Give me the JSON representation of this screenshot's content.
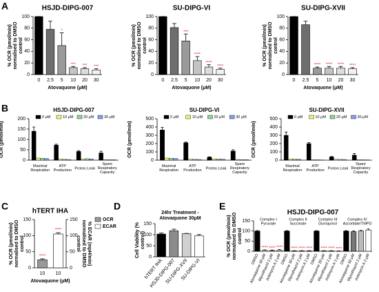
{
  "chart_data": [
    {
      "type": "bar",
      "panel_label": "A",
      "title": "HSJD-DIPG-007",
      "ylabel": "% OCR (pmol/min) normalised to DMSO control",
      "xlabel": "Atovaquone (μM)",
      "categories": [
        "0",
        "2.5",
        "5",
        "10",
        "20",
        "30"
      ],
      "values": [
        100,
        78,
        50,
        12,
        10,
        8
      ],
      "errors": [
        0,
        14,
        22,
        2,
        2,
        2
      ],
      "annotations": [
        null,
        null,
        "*",
        "***",
        "***",
        "***"
      ],
      "colors": [
        "#000000",
        "#6e6e6e",
        "#9a9a9a",
        "#c4c4c4",
        "#dcdcdc",
        "#f2f2f2"
      ],
      "ylim": [
        0,
        100
      ],
      "yticks": [
        0,
        20,
        40,
        60,
        80,
        100
      ]
    },
    {
      "type": "bar",
      "title": "SU-DIPG-VI",
      "ylabel": "% OCR (pmol/min) normalised to DMSO control",
      "xlabel": "Atovaquone (μM)",
      "categories": [
        "0",
        "2.5",
        "5",
        "10",
        "20",
        "30"
      ],
      "values": [
        100,
        81,
        58,
        24,
        13,
        9
      ],
      "errors": [
        0,
        7,
        12,
        7,
        4,
        2
      ],
      "annotations": [
        null,
        null,
        "***",
        "****",
        "****",
        "****"
      ],
      "colors": [
        "#000000",
        "#6e6e6e",
        "#9a9a9a",
        "#c4c4c4",
        "#dcdcdc",
        "#f2f2f2"
      ],
      "ylim": [
        0,
        100
      ],
      "yticks": [
        0,
        20,
        40,
        60,
        80,
        100
      ]
    },
    {
      "type": "bar",
      "title": "SU-DIPG-XVII",
      "ylabel": "% OCR (pmol/min) normalised to DMSO control",
      "xlabel": "Atovaquone (μM)",
      "categories": [
        "0",
        "2.5",
        "5",
        "10",
        "20",
        "30"
      ],
      "values": [
        100,
        86,
        11,
        11,
        11,
        10
      ],
      "errors": [
        0,
        6,
        2,
        3,
        3,
        2
      ],
      "annotations": [
        null,
        null,
        "****",
        "****",
        "****",
        "****"
      ],
      "colors": [
        "#000000",
        "#6e6e6e",
        "#9a9a9a",
        "#c4c4c4",
        "#dcdcdc",
        "#f2f2f2"
      ],
      "ylim": [
        0,
        100
      ],
      "yticks": [
        0,
        20,
        40,
        60,
        80,
        100
      ]
    },
    {
      "type": "grouped_bar",
      "panel_label": "B",
      "title": "HSJD-DIPG-007",
      "ylabel": "OCR (pmol/min)",
      "categories": [
        "Maximal Respiration",
        "ATP Production",
        "Proton Leak",
        "Spare Respiratory Capacity"
      ],
      "series": [
        {
          "name": "0 μM",
          "color": "#000000",
          "values": [
            140,
            73,
            42,
            35
          ],
          "errors": [
            20,
            4,
            4,
            8
          ]
        },
        {
          "name": "10 μM",
          "color": "#f2ef7a",
          "values": [
            10,
            5,
            6,
            3
          ]
        },
        {
          "name": "20 μM",
          "color": "#8fd88f",
          "values": [
            9,
            4,
            7,
            2
          ]
        },
        {
          "name": "30 μM",
          "color": "#8a9ee8",
          "values": [
            8,
            3,
            6,
            2
          ]
        }
      ],
      "ylim": [
        0,
        200
      ],
      "yticks": [
        0,
        50,
        100,
        150,
        200
      ]
    },
    {
      "type": "grouped_bar",
      "title": "SU-DIPG-VI",
      "ylabel": "OCR (pmol/min)",
      "categories": [
        "Maximal Respiration",
        "ATP Production",
        "Proton Leak",
        "Spare Respiratory Capacity"
      ],
      "series": [
        {
          "name": "0 μM",
          "color": "#000000",
          "values": [
            365,
            210,
            35,
            110
          ],
          "errors": [
            30,
            8,
            5,
            15
          ]
        },
        {
          "name": "10 μM",
          "color": "#f2ef7a",
          "values": [
            25,
            12,
            15,
            8
          ]
        },
        {
          "name": "20 μM",
          "color": "#8fd88f",
          "values": [
            22,
            10,
            14,
            6
          ]
        },
        {
          "name": "30 μM",
          "color": "#8a9ee8",
          "values": [
            20,
            8,
            12,
            5
          ]
        }
      ],
      "ylim": [
        0,
        500
      ],
      "yticks": [
        0,
        100,
        200,
        300,
        400,
        500
      ]
    },
    {
      "type": "grouped_bar",
      "title": "SU-DIPG-XVII",
      "ylabel": "OCR (pmol/min)",
      "categories": [
        "Maximal Respiration",
        "ATP Production",
        "Proton Leak",
        "Spare Respiratory Capacity"
      ],
      "series": [
        {
          "name": "0 μM",
          "color": "#000000",
          "values": [
            300,
            200,
            40,
            60
          ],
          "errors": [
            40,
            12,
            4,
            20
          ]
        },
        {
          "name": "10 μM",
          "color": "#f2ef7a",
          "values": [
            15,
            5,
            10,
            5
          ]
        },
        {
          "name": "20 μM",
          "color": "#8fd88f",
          "values": [
            12,
            4,
            9,
            4
          ]
        },
        {
          "name": "30 μM",
          "color": "#8a9ee8",
          "values": [
            10,
            3,
            8,
            3
          ]
        }
      ],
      "ylim": [
        0,
        500
      ],
      "yticks": [
        0,
        100,
        200,
        300,
        400,
        500
      ]
    },
    {
      "type": "dual_axis_bar",
      "panel_label": "C",
      "title": "hTERT IHA",
      "ylabel": "% OCR (pmol/min) normalised to DMSO control",
      "y2label": "% ECAR (mpH/min) normalised to DMSO control",
      "xlabel": "Atovaquone (μM)",
      "categories": [
        "10",
        "10"
      ],
      "series": [
        {
          "name": "OCR",
          "color": "#999999",
          "values": [
            25,
            null
          ],
          "errors": [
            3,
            null
          ],
          "annotations": [
            "****",
            null
          ]
        },
        {
          "name": "ECAR",
          "color": "#ffffff",
          "axis": "y2",
          "values": [
            null,
            105
          ],
          "errors": [
            null,
            4
          ],
          "annotations": [
            null,
            "****"
          ]
        }
      ],
      "ylim": [
        0,
        150
      ],
      "yticks": [
        0,
        50,
        100,
        150
      ],
      "y2lim": [
        0,
        150
      ],
      "y2ticks": [
        0,
        50,
        100,
        150
      ]
    },
    {
      "type": "bar",
      "panel_label": "D",
      "title": "24hr Treatment - Atovaquone 30μM",
      "ylabel": "Cell Viability (% control)",
      "categories": [
        "hTERT IHA",
        "HSJD-DIPG-007",
        "SU-DIPG-XVII",
        "SU-DIPG-VI"
      ],
      "values": [
        103,
        118,
        105,
        95
      ],
      "errors": [
        5,
        7,
        1,
        6
      ],
      "colors": [
        "#000000",
        "#8c8c8c",
        "#d0d0d0",
        "#ffffff"
      ],
      "ylim": [
        0,
        150
      ],
      "yticks": [
        0,
        50,
        100,
        150
      ]
    },
    {
      "type": "bar",
      "panel_label": "E",
      "title": "HSJD-DIPG-007",
      "ylabel": "% OCR (pmol/min) normalised to DMSO control",
      "group_labels": [
        [
          "Complex I",
          "Pyruvate"
        ],
        [
          "Complex II",
          "Succinate"
        ],
        [
          "Complex III",
          "Duroquinol"
        ],
        [
          "Complex IV",
          "Ascorbate/TMPD"
        ]
      ],
      "categories": [
        "DMSO",
        "Atovaquone 30 μM",
        "Myxothiazol 2 μM",
        "Antimycin A 2 μM",
        "DMSO",
        "Atovaquone 30 μM",
        "Myxothiazol 2 μM",
        "Antimycin A 2 μM",
        "DMSO",
        "Atovaquone 30 μM",
        "Myxothiazol 2 μM",
        "Antimycin A 2 μM",
        "DMSO",
        "Atovaquone 30 μM",
        "Myxothiazol 2 μM",
        "Antimycin A 2 μM"
      ],
      "values": [
        100,
        5,
        4,
        6,
        100,
        2,
        2,
        2,
        100,
        2,
        2,
        1,
        100,
        97,
        100,
        105
      ],
      "errors": [
        2,
        2,
        2,
        3,
        2,
        1,
        1,
        1,
        2,
        1,
        1,
        1,
        2,
        4,
        3,
        5
      ],
      "annotations": [
        null,
        "****",
        "****",
        "****",
        null,
        "****",
        "****",
        "****",
        null,
        "****",
        "****",
        "****",
        null,
        null,
        null,
        null
      ],
      "colors": [
        "#000000",
        "#ffffff",
        "#bbbbbb",
        "#eeeeee",
        "#000000",
        "#ffffff",
        "#bbbbbb",
        "#eeeeee",
        "#000000",
        "#ffffff",
        "#bbbbbb",
        "#eeeeee",
        "#000000",
        "#777777",
        "#bbbbbb",
        "#ffffff"
      ],
      "ylim": [
        0,
        150
      ],
      "yticks": [
        0,
        50,
        100,
        150
      ]
    }
  ]
}
